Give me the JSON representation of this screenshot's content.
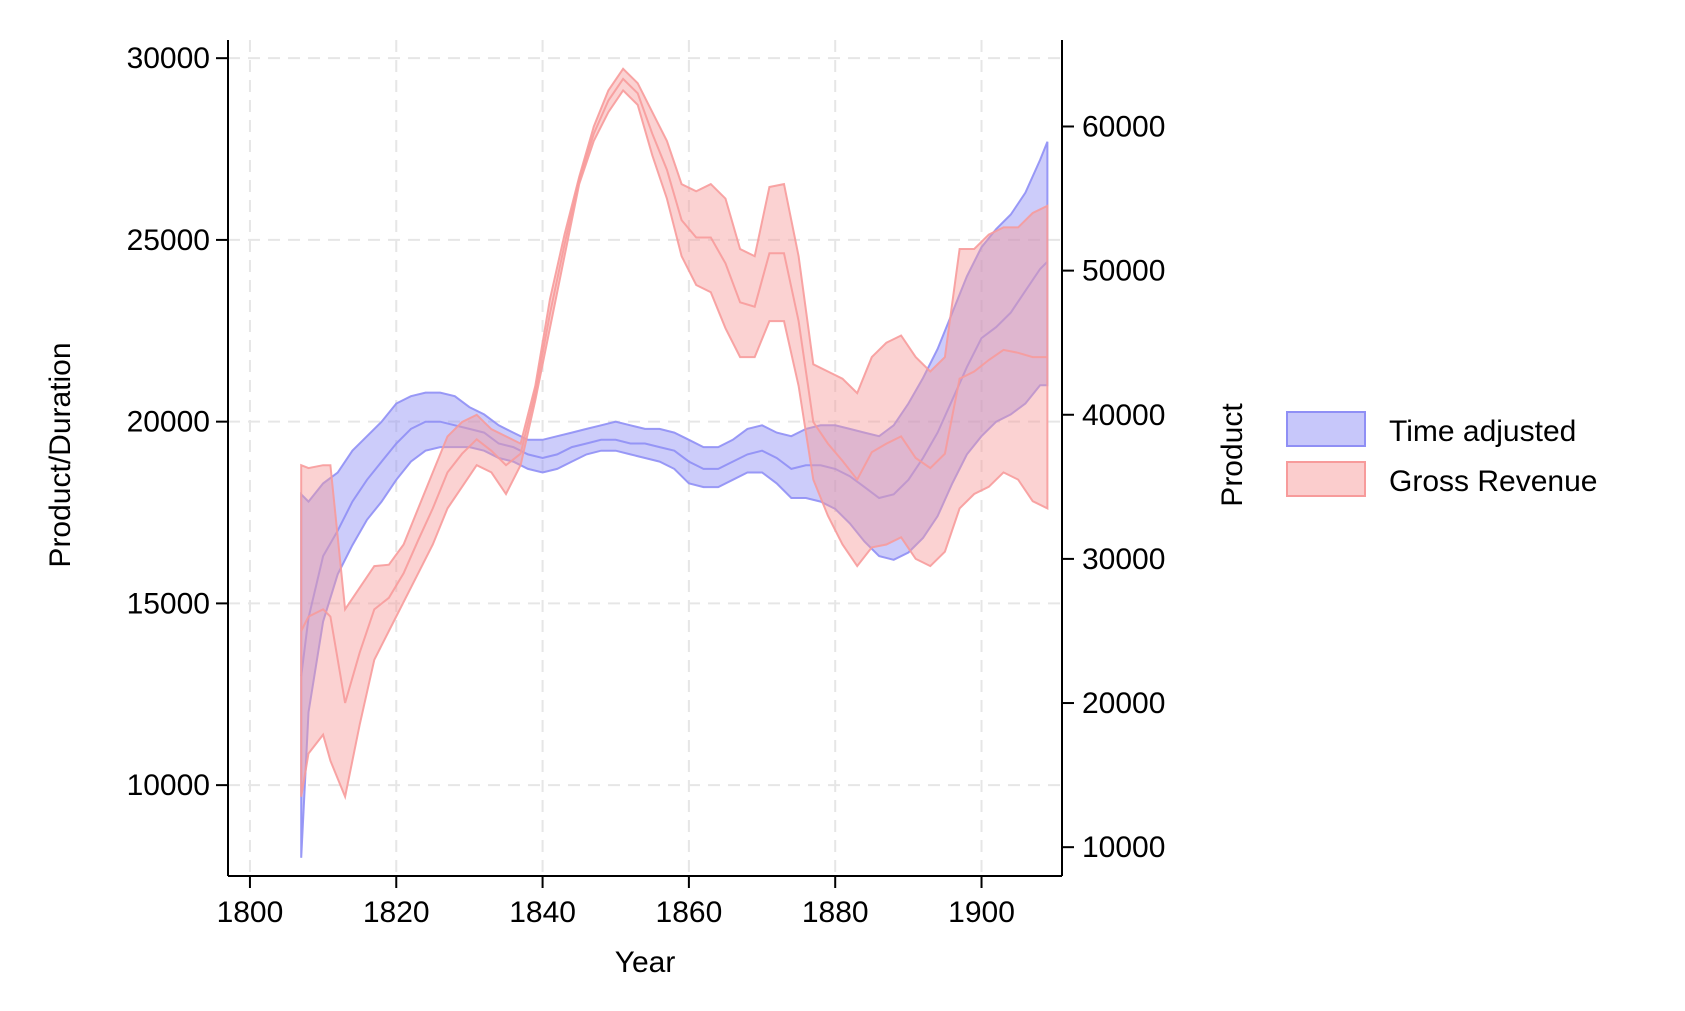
{
  "chart_data": {
    "type": "area",
    "xlabel": "Year",
    "ylabel_left": "Product/Duration",
    "ylabel_right": "Product",
    "xlim": [
      1797,
      1911
    ],
    "ylim_left": [
      7500,
      30500
    ],
    "ylim_right": [
      8000,
      66000
    ],
    "x_ticks": [
      1800,
      1820,
      1840,
      1860,
      1880,
      1900
    ],
    "y_left_ticks": [
      10000,
      15000,
      20000,
      25000,
      30000
    ],
    "y_right_ticks": [
      10000,
      20000,
      30000,
      40000,
      50000,
      60000
    ],
    "grid": true,
    "legend_position": "right",
    "series": [
      {
        "name": "Time adjusted",
        "axis": "left",
        "color": "#8f8ff5",
        "x": [
          1807,
          1808,
          1810,
          1812,
          1814,
          1816,
          1818,
          1820,
          1822,
          1824,
          1826,
          1828,
          1830,
          1832,
          1834,
          1836,
          1838,
          1840,
          1842,
          1844,
          1846,
          1848,
          1850,
          1852,
          1854,
          1856,
          1858,
          1860,
          1862,
          1864,
          1866,
          1868,
          1870,
          1872,
          1874,
          1876,
          1878,
          1880,
          1882,
          1884,
          1886,
          1888,
          1890,
          1892,
          1894,
          1896,
          1898,
          1900,
          1902,
          1904,
          1906,
          1908,
          1909
        ],
        "upper": [
          18000,
          17800,
          18300,
          18600,
          19200,
          19600,
          20000,
          20500,
          20700,
          20800,
          20800,
          20700,
          20400,
          20200,
          19900,
          19700,
          19500,
          19500,
          19600,
          19700,
          19800,
          19900,
          20000,
          19900,
          19800,
          19800,
          19700,
          19500,
          19300,
          19300,
          19500,
          19800,
          19900,
          19700,
          19600,
          19800,
          19900,
          19900,
          19800,
          19700,
          19600,
          19900,
          20500,
          21200,
          22000,
          23000,
          24000,
          24800,
          25300,
          25700,
          26300,
          27200,
          27700
        ],
        "lower": [
          8000,
          12000,
          14500,
          15800,
          16600,
          17300,
          17800,
          18400,
          18900,
          19200,
          19300,
          19300,
          19300,
          19200,
          19000,
          18900,
          18700,
          18600,
          18700,
          18900,
          19100,
          19200,
          19200,
          19100,
          19000,
          18900,
          18700,
          18300,
          18200,
          18200,
          18400,
          18600,
          18600,
          18300,
          17900,
          17900,
          17800,
          17600,
          17200,
          16700,
          16300,
          16200,
          16400,
          16800,
          17400,
          18300,
          19100,
          19600,
          20000,
          20200,
          20500,
          21000,
          21000
        ]
      },
      {
        "name": "Gross Revenue",
        "axis": "right",
        "color": "#f79b9b",
        "x": [
          1807,
          1808,
          1810,
          1811,
          1813,
          1815,
          1817,
          1819,
          1821,
          1823,
          1825,
          1827,
          1829,
          1831,
          1833,
          1835,
          1837,
          1839,
          1841,
          1843,
          1845,
          1847,
          1849,
          1851,
          1853,
          1855,
          1857,
          1859,
          1861,
          1863,
          1865,
          1867,
          1869,
          1871,
          1873,
          1875,
          1877,
          1879,
          1881,
          1883,
          1885,
          1887,
          1889,
          1891,
          1893,
          1895,
          1897,
          1899,
          1901,
          1903,
          1905,
          1907,
          1909
        ],
        "upper": [
          36500,
          36300,
          36500,
          36500,
          26500,
          28000,
          29500,
          29600,
          31000,
          33500,
          36000,
          38500,
          39500,
          40000,
          39000,
          38500,
          38000,
          42000,
          48000,
          52500,
          56500,
          60000,
          62500,
          64000,
          63000,
          61000,
          59000,
          56000,
          55500,
          56000,
          55000,
          51500,
          51000,
          55800,
          56000,
          51000,
          43500,
          43000,
          42500,
          41500,
          44000,
          45000,
          45500,
          44000,
          43000,
          44000,
          51500,
          51500,
          52500,
          53000,
          53000,
          54000,
          54500
        ],
        "lower": [
          13500,
          16500,
          17800,
          16000,
          13500,
          18500,
          23000,
          25000,
          27000,
          29000,
          31000,
          33500,
          35000,
          36500,
          36000,
          34500,
          36500,
          41000,
          46000,
          51000,
          56000,
          59000,
          61000,
          62500,
          61500,
          58000,
          55000,
          51000,
          49000,
          48500,
          46000,
          44000,
          44000,
          46500,
          46500,
          42000,
          35500,
          33000,
          31000,
          29500,
          30800,
          31000,
          31500,
          30000,
          29500,
          30500,
          33500,
          34500,
          35000,
          36000,
          35500,
          34000,
          33500
        ]
      }
    ],
    "center_lines": {
      "Time adjusted": [
        13000,
        14600,
        16300,
        17000,
        17800,
        18400,
        18900,
        19400,
        19800,
        20000,
        20000,
        19900,
        19800,
        19700,
        19400,
        19300,
        19100,
        19000,
        19100,
        19300,
        19400,
        19500,
        19500,
        19400,
        19400,
        19300,
        19200,
        18900,
        18700,
        18700,
        18900,
        19100,
        19200,
        19000,
        18700,
        18800,
        18800,
        18700,
        18500,
        18200,
        17900,
        18000,
        18400,
        19000,
        19700,
        20600,
        21500,
        22300,
        22600,
        23000,
        23600,
        24200,
        24400
      ],
      "Gross Revenue": [
        25000,
        26000,
        26500,
        26000,
        20000,
        23500,
        26500,
        27300,
        29000,
        31300,
        33500,
        36000,
        37300,
        38300,
        37500,
        36500,
        37300,
        41500,
        47000,
        51800,
        56300,
        59500,
        61800,
        63300,
        62300,
        59500,
        57000,
        53500,
        52300,
        52300,
        50500,
        47800,
        47500,
        51200,
        51200,
        46500,
        39500,
        38000,
        36800,
        35500,
        37400,
        38000,
        38500,
        37000,
        36300,
        37300,
        42500,
        43000,
        43800,
        44500,
        44300,
        44000,
        44000
      ]
    }
  }
}
